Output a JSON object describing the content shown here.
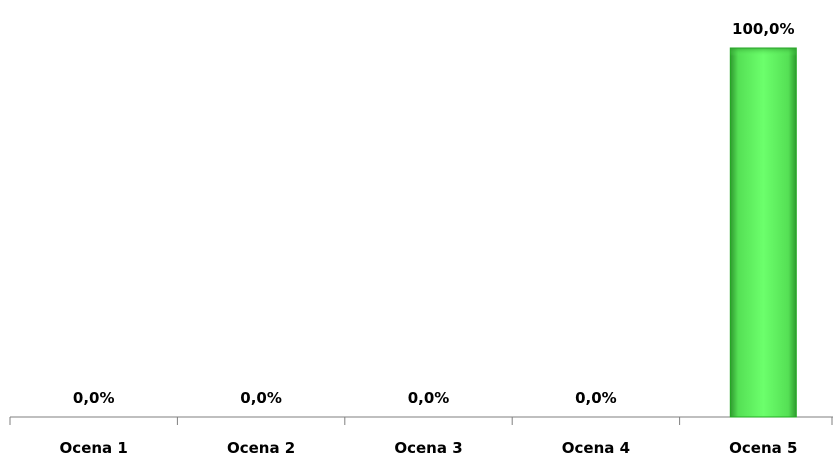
{
  "chart_data": {
    "type": "bar",
    "categories": [
      "Ocena 1",
      "Ocena 2",
      "Ocena 3",
      "Ocena 4",
      "Ocena 5"
    ],
    "values": [
      0,
      0,
      0,
      0,
      100
    ],
    "value_labels": [
      "0,0%",
      "0,0%",
      "0,0%",
      "0,0%",
      "100,0%"
    ],
    "ylim": [
      0,
      100
    ],
    "grid": false,
    "legend": "none",
    "bar_color": "#66ff66",
    "bar_edge_color": "#22aa22"
  }
}
